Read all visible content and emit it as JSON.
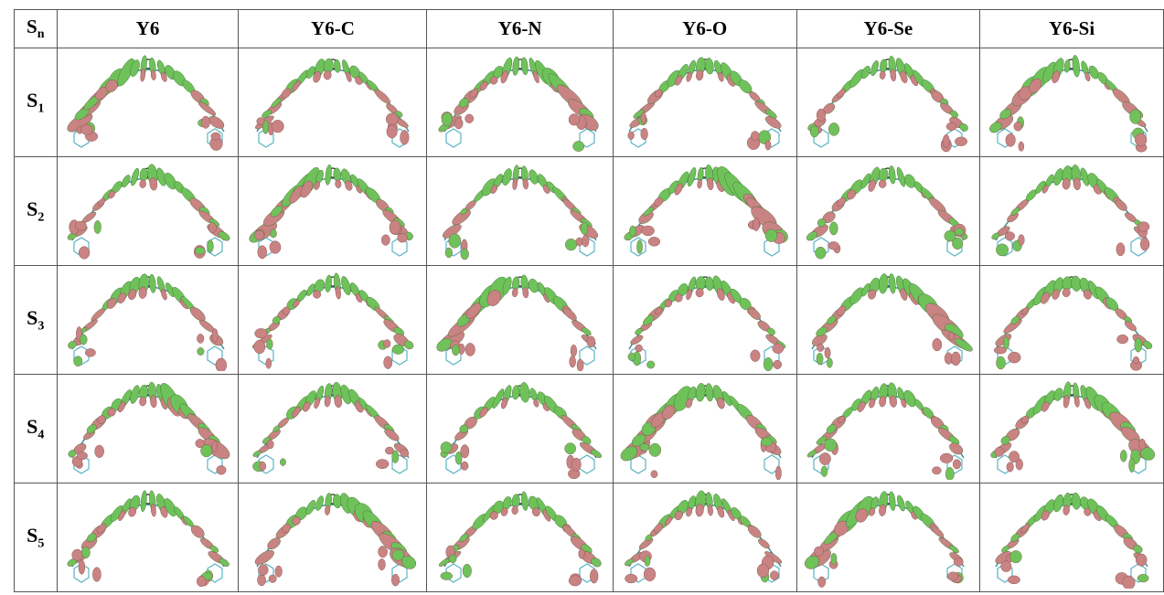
{
  "table": {
    "header": [
      {
        "base": "S",
        "sub": "n"
      },
      "Y6",
      "Y6-C",
      "Y6-N",
      "Y6-O",
      "Y6-Se",
      "Y6-Si"
    ],
    "rows": [
      {
        "base": "S",
        "sub": "1"
      },
      {
        "base": "S",
        "sub": "2"
      },
      {
        "base": "S",
        "sub": "3"
      },
      {
        "base": "S",
        "sub": "4"
      },
      {
        "base": "S",
        "sub": "5"
      }
    ]
  }
}
